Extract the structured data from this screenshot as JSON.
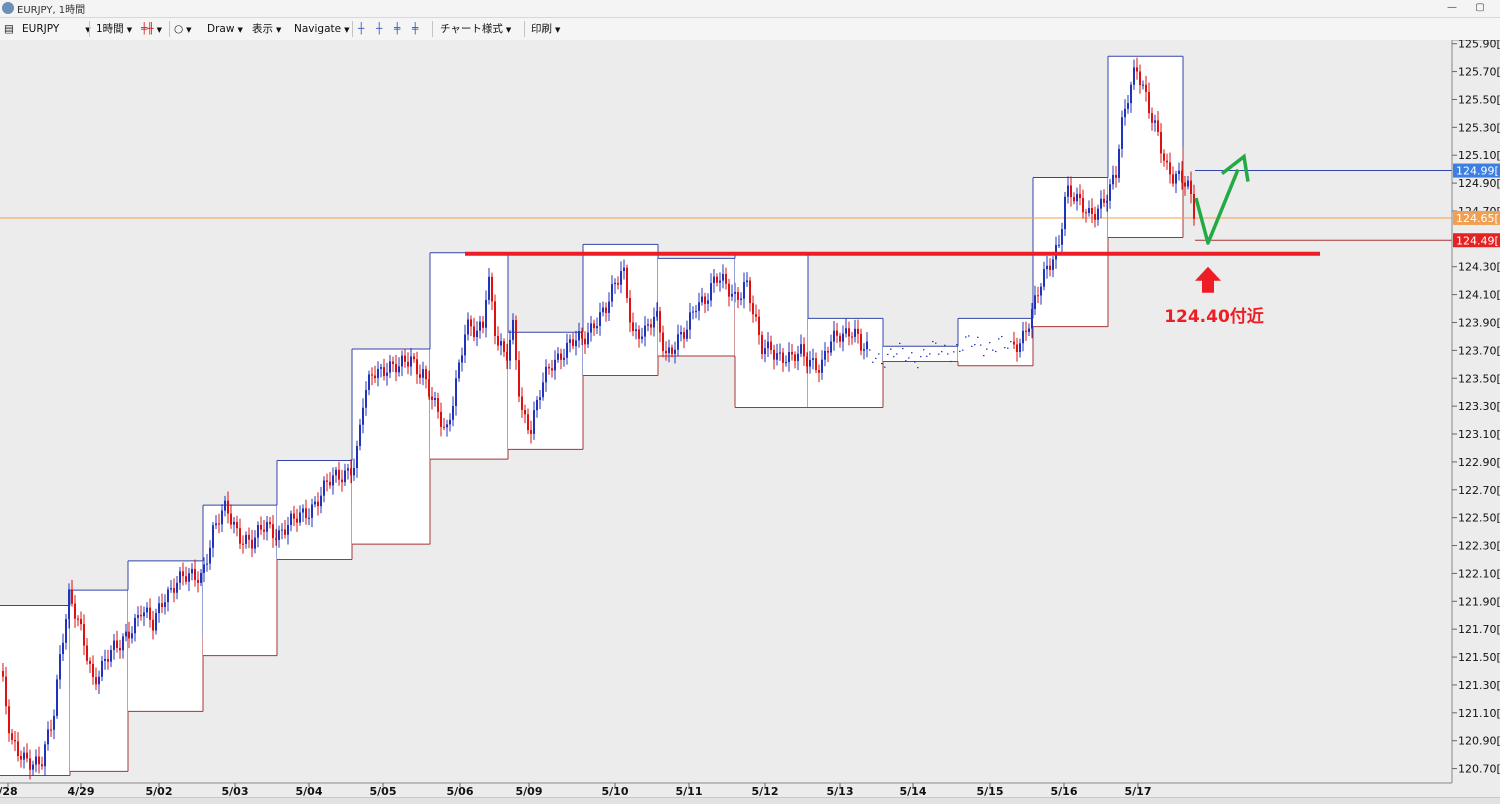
{
  "window": {
    "title": "EURJPY, 1時間",
    "minimize": "—",
    "restore": "▢"
  },
  "toolbar": {
    "symbol": "EURJPY",
    "timeframe": "1時間",
    "draw": "Draw",
    "view": "表示",
    "navigate": "Navigate",
    "chart_style": "チャート様式",
    "print": "印刷"
  },
  "colors": {
    "up_candle": "#2233bb",
    "down_candle": "#dd1111",
    "box_top": "#3344aa",
    "box_bottom": "#aa3333",
    "resistance": "#ee1c24",
    "projection_arrow": "#22aa44",
    "current_price_line": "#f0a050",
    "tag_blue": "#3d7fe0",
    "tag_orange": "#f0a050",
    "tag_red": "#e52222"
  },
  "chart_data": {
    "type": "candlestick",
    "symbol": "EURJPY",
    "timeframe": "1時間",
    "x_labels": [
      "/28",
      "4/29",
      "5/02",
      "5/03",
      "5/04",
      "5/05",
      "5/06",
      "5/09",
      "5/10",
      "5/11",
      "5/12",
      "5/13",
      "5/14",
      "5/15",
      "5/16",
      "5/17"
    ],
    "y_axis": {
      "min": 120.6,
      "max": 125.95,
      "tick_labels": [
        "125.90[",
        "125.70[",
        "125.50[",
        "125.30[",
        "125.10[",
        "124.90[",
        "124.70[",
        "124.30[",
        "124.10[",
        "123.90[",
        "123.70[",
        "123.50[",
        "123.30[",
        "123.10[",
        "122.90[",
        "122.70[",
        "122.50[",
        "122.30[",
        "122.10[",
        "121.90[",
        "121.70[",
        "121.50[",
        "121.30[",
        "121.10[",
        "120.90[",
        "120.70["
      ],
      "tick_values": [
        125.9,
        125.7,
        125.5,
        125.3,
        125.1,
        124.9,
        124.7,
        124.3,
        124.1,
        123.9,
        123.7,
        123.5,
        123.3,
        123.1,
        122.9,
        122.7,
        122.5,
        122.3,
        122.1,
        121.9,
        121.7,
        121.5,
        121.3,
        121.1,
        120.9,
        120.7
      ]
    },
    "daily_ranges": [
      {
        "date": "4/28",
        "high": 121.87,
        "low": 120.65
      },
      {
        "date": "4/29",
        "high": 121.98,
        "low": 120.68
      },
      {
        "date": "5/02",
        "high": 122.19,
        "low": 121.11
      },
      {
        "date": "5/03",
        "high": 122.59,
        "low": 121.51
      },
      {
        "date": "5/04",
        "high": 122.91,
        "low": 122.2
      },
      {
        "date": "5/05",
        "high": 123.71,
        "low": 122.31
      },
      {
        "date": "5/06",
        "high": 124.4,
        "low": 122.92
      },
      {
        "date": "5/09",
        "high": 123.83,
        "low": 122.99
      },
      {
        "date": "5/10",
        "high": 124.46,
        "low": 123.52
      },
      {
        "date": "5/11",
        "high": 124.36,
        "low": 123.66
      },
      {
        "date": "5/12",
        "high": 124.4,
        "low": 123.29
      },
      {
        "date": "5/13",
        "high": 123.93,
        "low": 123.29
      },
      {
        "date": "5/14",
        "high": 123.73,
        "low": 123.62
      },
      {
        "date": "5/15",
        "high": 123.93,
        "low": 123.59
      },
      {
        "date": "5/16",
        "high": 124.94,
        "low": 123.87
      },
      {
        "date": "5/17",
        "high": 125.81,
        "low": 124.51
      }
    ],
    "price_path": [
      [
        0,
        121.4
      ],
      [
        10,
        120.85
      ],
      [
        25,
        120.8
      ],
      [
        40,
        120.7
      ],
      [
        52,
        121.05
      ],
      [
        60,
        121.6
      ],
      [
        68,
        121.95
      ],
      [
        80,
        121.65
      ],
      [
        92,
        121.35
      ],
      [
        105,
        121.5
      ],
      [
        118,
        121.55
      ],
      [
        128,
        121.7
      ],
      [
        140,
        121.85
      ],
      [
        152,
        121.7
      ],
      [
        163,
        121.95
      ],
      [
        175,
        122.05
      ],
      [
        188,
        122.05
      ],
      [
        200,
        122.1
      ],
      [
        212,
        122.4
      ],
      [
        225,
        122.55
      ],
      [
        238,
        122.4
      ],
      [
        252,
        122.3
      ],
      [
        265,
        122.45
      ],
      [
        278,
        122.4
      ],
      [
        292,
        122.45
      ],
      [
        305,
        122.55
      ],
      [
        318,
        122.65
      ],
      [
        330,
        122.75
      ],
      [
        345,
        122.85
      ],
      [
        355,
        122.9
      ],
      [
        362,
        123.3
      ],
      [
        372,
        123.55
      ],
      [
        385,
        123.6
      ],
      [
        398,
        123.55
      ],
      [
        410,
        123.65
      ],
      [
        422,
        123.55
      ],
      [
        432,
        123.3
      ],
      [
        445,
        123.1
      ],
      [
        455,
        123.5
      ],
      [
        465,
        123.85
      ],
      [
        475,
        123.8
      ],
      [
        482,
        123.9
      ],
      [
        487,
        124.3
      ],
      [
        495,
        123.8
      ],
      [
        505,
        123.6
      ],
      [
        512,
        123.85
      ],
      [
        520,
        123.3
      ],
      [
        530,
        123.15
      ],
      [
        540,
        123.4
      ],
      [
        550,
        123.6
      ],
      [
        560,
        123.7
      ],
      [
        570,
        123.75
      ],
      [
        582,
        123.75
      ],
      [
        595,
        123.95
      ],
      [
        605,
        124.0
      ],
      [
        615,
        124.15
      ],
      [
        622,
        124.3
      ],
      [
        632,
        123.85
      ],
      [
        645,
        123.8
      ],
      [
        655,
        123.95
      ],
      [
        665,
        123.7
      ],
      [
        675,
        123.75
      ],
      [
        685,
        123.8
      ],
      [
        695,
        124.05
      ],
      [
        705,
        124.1
      ],
      [
        715,
        124.2
      ],
      [
        725,
        124.15
      ],
      [
        735,
        124.1
      ],
      [
        745,
        124.2
      ],
      [
        752,
        123.95
      ],
      [
        760,
        123.7
      ],
      [
        770,
        123.75
      ],
      [
        780,
        123.65
      ],
      [
        790,
        123.6
      ],
      [
        800,
        123.7
      ],
      [
        810,
        123.65
      ],
      [
        820,
        123.55
      ],
      [
        830,
        123.75
      ],
      [
        840,
        123.85
      ],
      [
        852,
        123.85
      ],
      [
        860,
        123.7
      ],
      [
        870,
        123.68
      ],
      [
        885,
        123.65
      ],
      [
        900,
        123.67
      ],
      [
        920,
        123.66
      ],
      [
        940,
        123.7
      ],
      [
        960,
        123.72
      ],
      [
        980,
        123.75
      ],
      [
        1000,
        123.73
      ],
      [
        1010,
        123.7
      ],
      [
        1020,
        123.8
      ],
      [
        1030,
        123.95
      ],
      [
        1040,
        124.15
      ],
      [
        1050,
        124.35
      ],
      [
        1058,
        124.5
      ],
      [
        1065,
        124.85
      ],
      [
        1075,
        124.75
      ],
      [
        1088,
        124.7
      ],
      [
        1100,
        124.75
      ],
      [
        1108,
        124.8
      ],
      [
        1115,
        124.95
      ],
      [
        1120,
        125.3
      ],
      [
        1128,
        125.6
      ],
      [
        1135,
        125.75
      ],
      [
        1142,
        125.55
      ],
      [
        1150,
        125.35
      ],
      [
        1158,
        125.25
      ],
      [
        1165,
        125.05
      ],
      [
        1172,
        124.95
      ],
      [
        1180,
        124.9
      ],
      [
        1188,
        124.85
      ],
      [
        1195,
        124.65
      ]
    ],
    "horizontal_lines": [
      {
        "value": 124.99,
        "tag": "124.99[",
        "tag_color": "blue",
        "x_start": 1195
      },
      {
        "value": 124.65,
        "tag": "124.65[",
        "tag_color": "orange",
        "x_start": 0
      },
      {
        "value": 124.49,
        "tag": "124.49[",
        "tag_color": "red",
        "x_start": 1195
      }
    ],
    "resistance": {
      "value": 124.4,
      "x_start": 465,
      "x_end": 1320
    },
    "annotation": {
      "text": "124.40付近",
      "value": 124.4,
      "arrow": "up"
    },
    "projection": {
      "low": 124.47,
      "target": 125.04
    }
  }
}
